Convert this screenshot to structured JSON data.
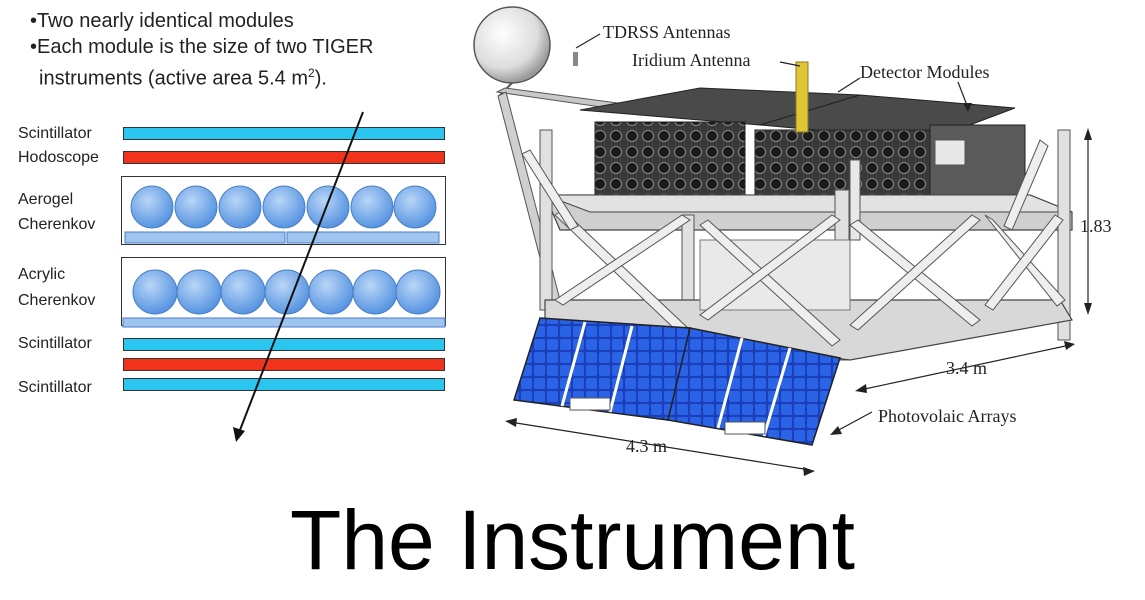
{
  "bullets": {
    "b1": "•Two nearly identical modules",
    "b2_line1": "•Each module is the size of two TIGER",
    "b2_line2": "instruments (active area 5.4 m",
    "b2_sup": "2",
    "b2_end": ")."
  },
  "layers": {
    "scint_top": "Scintillator",
    "hodoscope": "Hodoscope",
    "aerogel_l1": "Aerogel",
    "aerogel_l2": "Cherenkov",
    "acrylic_l1": "Acrylic",
    "acrylic_l2": "Cherenkov",
    "scint_mid": "Scintillator",
    "scint_bottom": "Scintillator"
  },
  "colors": {
    "scintillator": "#2bc6f0",
    "hodoscope": "#f2331c",
    "pmt": "#6aa6e8",
    "solar_panel": "#1f4fd6"
  },
  "callouts": {
    "tdrss": "TDRSS Antennas",
    "iridium": "Iridium Antenna",
    "detector_modules": "Detector Modules",
    "height": "1.83",
    "depth": "3.4 m",
    "photovoltaic": "Photovolaic Arrays",
    "width": "4.3 m"
  },
  "title": "The Instrument"
}
